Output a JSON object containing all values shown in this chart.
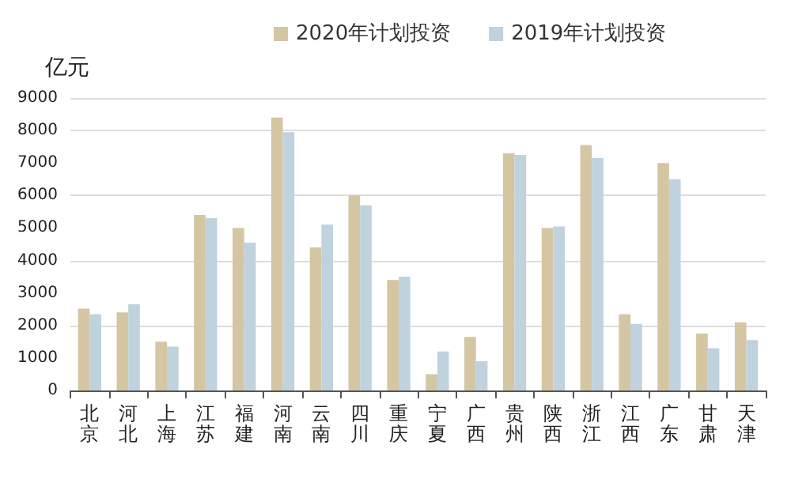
{
  "chart_data": {
    "type": "bar",
    "ylabel": "亿元",
    "categories": [
      "北京",
      "河北",
      "上海",
      "江苏",
      "福建",
      "河南",
      "云南",
      "四川",
      "重庆",
      "宁夏",
      "广西",
      "贵州",
      "陕西",
      "浙江",
      "江西",
      "广东",
      "甘肃",
      "天津"
    ],
    "series": [
      {
        "name": "2020年计划投资",
        "color": "#d4c6a2",
        "values": [
          2520,
          2400,
          1500,
          5400,
          5000,
          8400,
          4400,
          6000,
          3400,
          500,
          1650,
          7300,
          5000,
          7550,
          2350,
          7000,
          1750,
          2100
        ]
      },
      {
        "name": "2019年计划投资",
        "color": "#bfd2de",
        "values": [
          2350,
          2650,
          1350,
          5300,
          4550,
          7950,
          5100,
          5700,
          3500,
          1200,
          900,
          7250,
          5050,
          7150,
          2050,
          6500,
          1300,
          1550
        ]
      }
    ],
    "ylim": [
      0,
      9000
    ],
    "yticks": [
      0,
      1000,
      2000,
      3000,
      4000,
      5000,
      6000,
      7000,
      8000,
      9000
    ],
    "grid": "y",
    "legend": "top"
  }
}
